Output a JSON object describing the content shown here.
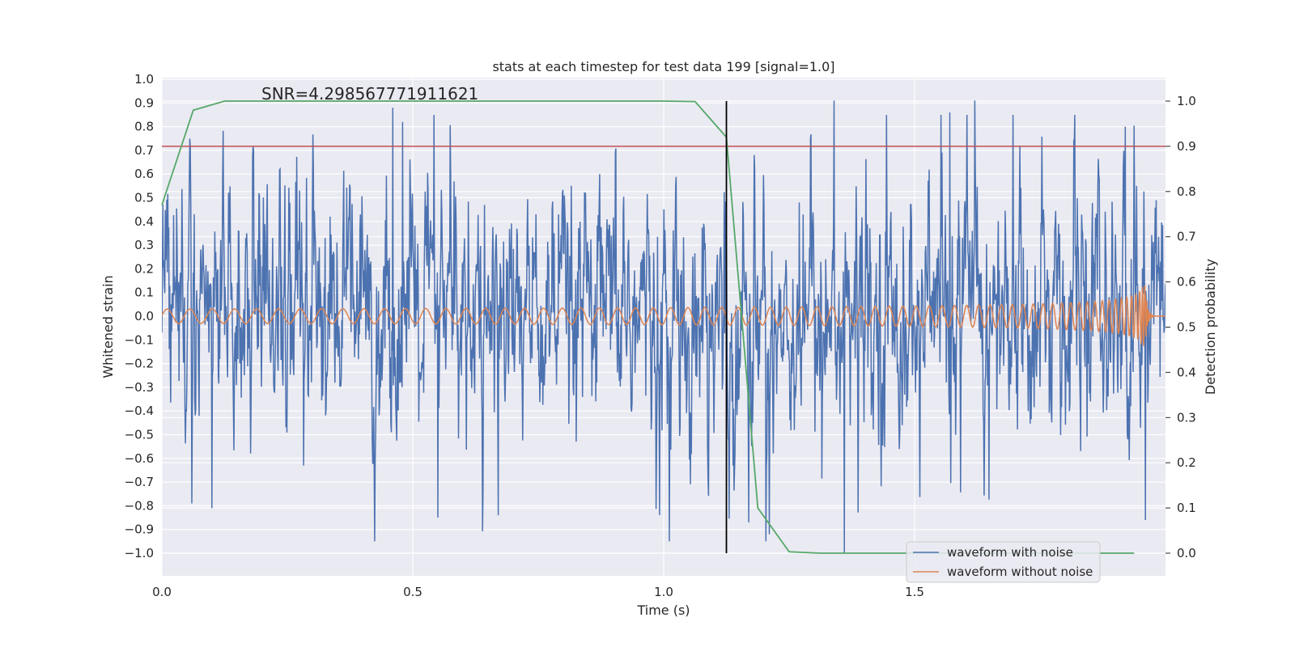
{
  "chart_data": {
    "type": "line",
    "title": "stats at each timestep for test data 199 [signal=1.0]",
    "annotation": "SNR=4.298567771911621",
    "xlabel": "Time (s)",
    "ylabel": "Whitened strain",
    "y2label": "Detection probability",
    "xlim": [
      0.0,
      2.0
    ],
    "ylim": [
      -1.1,
      1.0
    ],
    "y2lim": [
      -0.05,
      1.05
    ],
    "x_ticks": [
      "0.0",
      "0.5",
      "1.0",
      "1.5"
    ],
    "y_ticks": [
      "1.0",
      "0.9",
      "0.8",
      "0.7",
      "0.6",
      "0.5",
      "0.4",
      "0.3",
      "0.2",
      "0.1",
      "0.0",
      "−0.1",
      "−0.2",
      "−0.3",
      "−0.4",
      "−0.5",
      "−0.6",
      "−0.7",
      "−0.8",
      "−0.9",
      "−1.0"
    ],
    "y2_ticks": [
      "1.0",
      "0.9",
      "0.8",
      "0.7",
      "0.6",
      "0.5",
      "0.4",
      "0.3",
      "0.2",
      "0.1",
      "0.0"
    ],
    "threshold": {
      "axis": "right",
      "value": 0.9,
      "color": "#c44e52"
    },
    "marker_time": {
      "value": 1.125,
      "color": "#000000"
    },
    "series": [
      {
        "name": "waveform with noise",
        "axis": "left",
        "color": "#4c72b0",
        "note": "dense noise, approx. uniform sampling over 0-2 s, amplitude within [-1.0, 0.91]",
        "n_points": 2048,
        "seed": 199,
        "amplitude": 0.29,
        "peaks": [
          [
            0.06,
            -0.79
          ],
          [
            0.1,
            -0.81
          ],
          [
            0.46,
            0.88
          ],
          [
            0.48,
            0.82
          ],
          [
            0.55,
            -0.85
          ],
          [
            0.67,
            -0.84
          ],
          [
            1.34,
            0.91
          ],
          [
            1.36,
            -1.0
          ],
          [
            1.62,
            0.91
          ],
          [
            1.57,
            0.86
          ],
          [
            1.92,
            0.8
          ],
          [
            1.96,
            -0.86
          ],
          [
            1.17,
            -0.87
          ]
        ]
      },
      {
        "name": "waveform without noise",
        "axis": "left",
        "color": "#dd8452",
        "note": "chirp signal, amplitude ~0.03 growing to ~0.13 near merger at ~1.96 s, then flat 0",
        "merger_time": 1.96,
        "start_amplitude": 0.03,
        "peak_amplitude": 0.13
      },
      {
        "name": "detection probability",
        "axis": "right",
        "color": "#55a868",
        "x": [
          0.0,
          0.0625,
          0.125,
          0.1875,
          0.25,
          1.0,
          1.0625,
          1.125,
          1.1875,
          1.25,
          1.3125,
          1.9375
        ],
        "y": [
          0.77,
          0.98,
          1.0,
          1.0,
          1.0,
          1.0,
          0.999,
          0.92,
          0.1,
          0.003,
          0.0,
          0.0
        ]
      }
    ],
    "legend": {
      "placement": "lower right",
      "entries": [
        "waveform with noise",
        "waveform without noise"
      ]
    }
  }
}
